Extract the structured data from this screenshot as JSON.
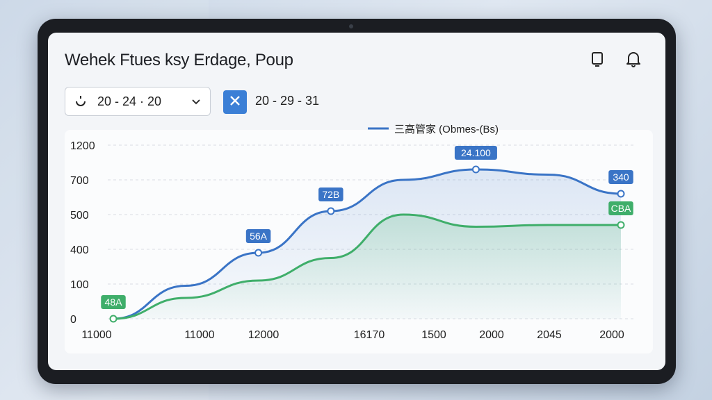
{
  "header": {
    "title": "Wehek Ftues ksy Erdage, Poup",
    "icons": [
      "tablet-icon",
      "bell-icon"
    ]
  },
  "filters": {
    "start_date": "20 - 24  · 20",
    "end_date": "20 - 29 - 31"
  },
  "chart_data": {
    "type": "area",
    "legend": "三高管家 (Obmes-(Bs)",
    "legend_placement": "top-center",
    "y_tick_labels": [
      "0",
      "100",
      "400",
      "500",
      "700",
      "1200"
    ],
    "x_tick_labels": [
      "11000",
      "11000",
      "12000",
      "16170",
      "1500",
      "2000",
      "2045",
      "2000"
    ],
    "grid": true,
    "series": [
      {
        "color": "#3a74c6",
        "values": [
          0,
          0.19,
          0.38,
          0.62,
          0.8,
          0.86,
          0.83,
          0.72
        ],
        "labels": [
          {
            "index": 2,
            "text": "56A"
          },
          {
            "index": 3,
            "text": "72B"
          },
          {
            "index": 5,
            "text": "24.100"
          },
          {
            "index": 7,
            "text": "340"
          }
        ]
      },
      {
        "color": "#3fae6a",
        "values": [
          0,
          0.12,
          0.22,
          0.35,
          0.6,
          0.53,
          0.54,
          0.54
        ],
        "labels": [
          {
            "index": 0,
            "text": "48A"
          },
          {
            "index": 7,
            "text": "CBA"
          }
        ]
      }
    ]
  }
}
